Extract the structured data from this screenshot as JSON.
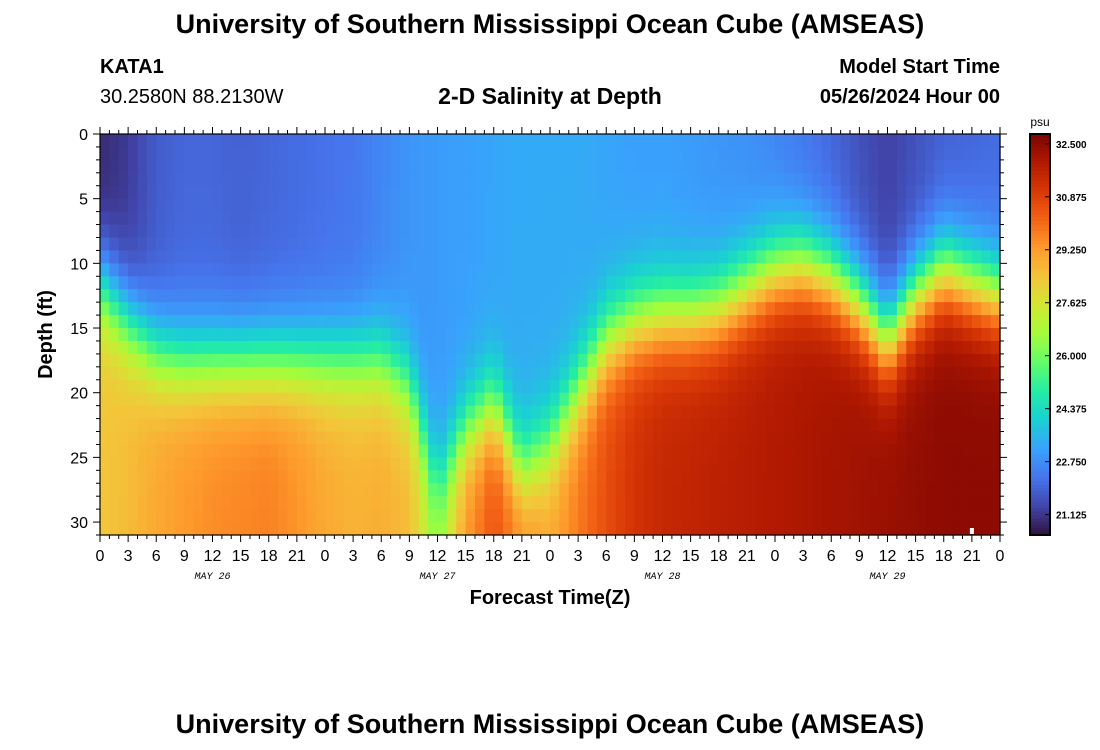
{
  "header": {
    "title": "University of Southern Mississippi Ocean Cube (AMSEAS)",
    "station": "KATA1",
    "coordinates": "30.2580N  88.2130W",
    "subtitle": "2-D Salinity at Depth",
    "model_start_label": "Model Start Time",
    "model_start_value": "05/26/2024 Hour 00"
  },
  "footer": {
    "title": "University of Southern Mississippi Ocean Cube (AMSEAS)"
  },
  "chart_data": {
    "type": "heatmap",
    "title": "2-D Salinity at Depth",
    "xlabel": "Forecast Time(Z)",
    "ylabel": "Depth (ft)",
    "x_ticks": [
      "0",
      "3",
      "6",
      "9",
      "12",
      "15",
      "18",
      "21",
      "0",
      "3",
      "6",
      "9",
      "12",
      "15",
      "18",
      "21",
      "0",
      "3",
      "6",
      "9",
      "12",
      "15",
      "18",
      "21",
      "0",
      "3",
      "6",
      "9",
      "12",
      "15",
      "18",
      "21",
      "0"
    ],
    "x_range_hours": [
      0,
      96
    ],
    "day_labels": [
      {
        "label": "MAY 26",
        "hour": 12
      },
      {
        "label": "MAY 27",
        "hour": 36
      },
      {
        "label": "MAY 28",
        "hour": 60
      },
      {
        "label": "MAY 29",
        "hour": 84
      }
    ],
    "y_ticks": [
      0,
      5,
      10,
      15,
      20,
      25,
      30
    ],
    "y_range_ft": [
      0,
      31
    ],
    "colorbar": {
      "unit": "psu",
      "min": 20.5,
      "max": 32.8,
      "tick_labels": [
        "32.500",
        "30.875",
        "29.250",
        "27.625",
        "26.000",
        "24.375",
        "22.750",
        "21.125"
      ],
      "tick_values": [
        32.5,
        30.875,
        29.25,
        27.625,
        26.0,
        24.375,
        22.75,
        21.125
      ],
      "colormap": [
        "#30123b",
        "#4145ab",
        "#4675ed",
        "#39a2fc",
        "#1bcfd4",
        "#24eca6",
        "#61fc6c",
        "#a4fc3b",
        "#d1e834",
        "#f3c63a",
        "#fe9b2d",
        "#f36315",
        "#d93806",
        "#b11901",
        "#7a0403"
      ]
    },
    "profile_hours": [
      0,
      3,
      6,
      9,
      12,
      15,
      18,
      21,
      24,
      27,
      30,
      33,
      36,
      39,
      42,
      45,
      48,
      51,
      54,
      57,
      60,
      63,
      66,
      69,
      72,
      75,
      78,
      81,
      84,
      87,
      90,
      93,
      96
    ],
    "surface_salinity_psu": [
      20.9,
      21.2,
      21.8,
      22.0,
      22.0,
      21.9,
      22.0,
      22.1,
      22.2,
      22.3,
      22.6,
      22.9,
      23.0,
      23.1,
      23.2,
      23.3,
      23.3,
      23.3,
      23.2,
      23.1,
      23.1,
      23.0,
      22.9,
      22.8,
      22.6,
      22.3,
      22.0,
      21.6,
      21.3,
      21.6,
      21.9,
      22.0,
      22.1
    ],
    "bottom_salinity_psu": [
      28.4,
      28.6,
      29.0,
      29.3,
      29.5,
      29.6,
      29.7,
      29.4,
      29.0,
      28.8,
      28.9,
      28.6,
      26.5,
      29.3,
      30.5,
      29.6,
      29.0,
      29.8,
      30.6,
      31.2,
      31.5,
      31.6,
      31.7,
      31.8,
      31.9,
      32.0,
      32.1,
      32.2,
      32.3,
      32.4,
      32.5,
      32.5,
      32.5
    ],
    "halocline_depth_ft": [
      11.5,
      14.5,
      16.8,
      17.5,
      17.5,
      17.5,
      17.5,
      17.5,
      17.5,
      17.5,
      17.5,
      19.5,
      27.0,
      23.0,
      21.0,
      26.0,
      24.0,
      20.0,
      16.0,
      14.5,
      14.0,
      14.0,
      13.5,
      12.0,
      10.5,
      10.0,
      11.0,
      13.0,
      16.0,
      12.5,
      10.5,
      11.5,
      12.5
    ]
  }
}
